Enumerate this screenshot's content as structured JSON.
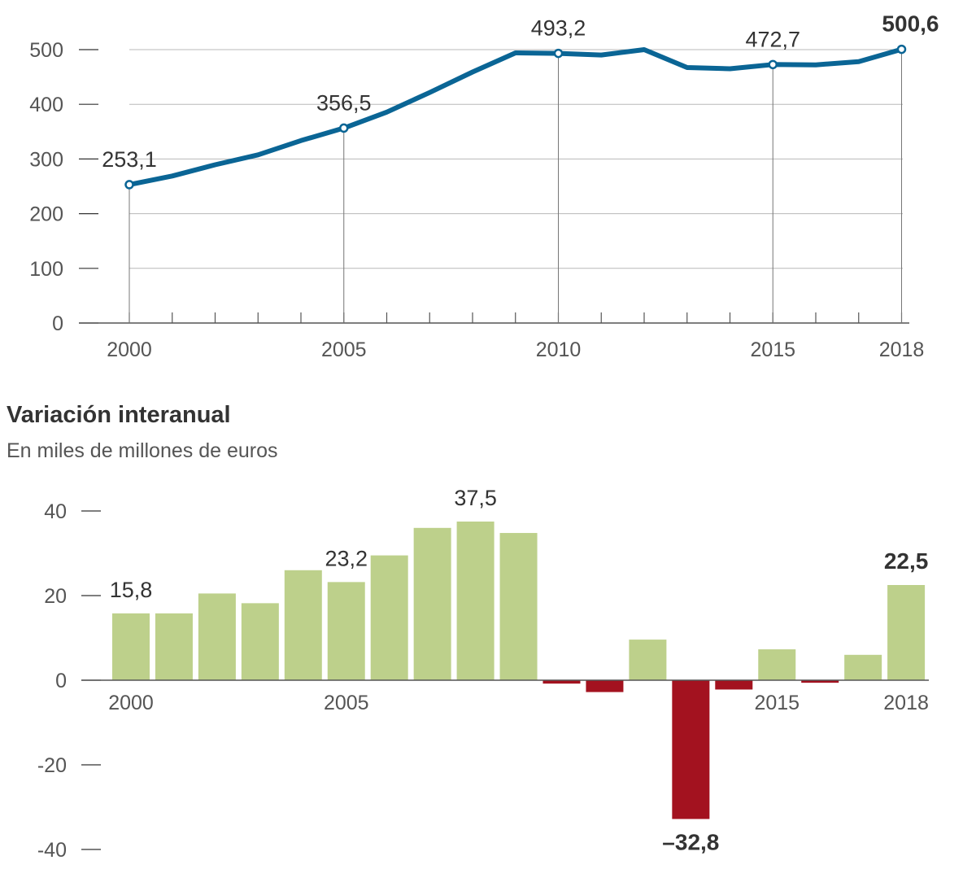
{
  "chart_data": [
    {
      "type": "line",
      "title": "",
      "xlabel": "",
      "ylabel": "",
      "x": [
        2000,
        2001,
        2002,
        2003,
        2004,
        2005,
        2006,
        2007,
        2008,
        2009,
        2010,
        2011,
        2012,
        2013,
        2014,
        2015,
        2016,
        2017,
        2018
      ],
      "values": [
        253.1,
        268.9,
        289.4,
        307.6,
        333.6,
        356.5,
        385.7,
        421.6,
        459.1,
        494.0,
        493.2,
        490.2,
        500.0,
        467.2,
        465.0,
        472.7,
        472.1,
        478.1,
        500.6
      ],
      "ylim": [
        0,
        550
      ],
      "yticks": [
        "0",
        "100",
        "200",
        "300",
        "400",
        "500"
      ],
      "ytick_values": [
        0,
        100,
        200,
        300,
        400,
        500
      ],
      "xticks": [
        "2000",
        "2005",
        "2010",
        "2015",
        "2018"
      ],
      "xtick_values": [
        2000,
        2005,
        2010,
        2015,
        2018
      ],
      "labeled_points": [
        {
          "x": 2000,
          "label": "253,1",
          "bold": false
        },
        {
          "x": 2005,
          "label": "356,5",
          "bold": false
        },
        {
          "x": 2010,
          "label": "493,2",
          "bold": false
        },
        {
          "x": 2015,
          "label": "472,7",
          "bold": false
        },
        {
          "x": 2018,
          "label": "500,6",
          "bold": true
        }
      ],
      "line_color": "#0a6595",
      "grid": true
    },
    {
      "type": "bar",
      "title": "Variación interanual",
      "subtitle": "En miles de millones de euros",
      "xlabel": "",
      "ylabel": "",
      "x": [
        2000,
        2001,
        2002,
        2003,
        2004,
        2005,
        2006,
        2007,
        2008,
        2009,
        2010,
        2011,
        2012,
        2013,
        2014,
        2015,
        2016,
        2017,
        2018
      ],
      "values": [
        15.8,
        15.8,
        20.5,
        18.2,
        26.0,
        23.2,
        29.5,
        36.0,
        37.5,
        34.8,
        -0.8,
        -2.8,
        9.6,
        -32.8,
        -2.2,
        7.3,
        -0.6,
        6.0,
        22.5
      ],
      "ylim": [
        -40,
        40
      ],
      "yticks": [
        "40",
        "20",
        "0",
        "-20",
        "-40"
      ],
      "ytick_values": [
        40,
        20,
        0,
        -20,
        -40
      ],
      "xticks": [
        "2000",
        "2005",
        "2015",
        "2018"
      ],
      "xtick_values": [
        2000,
        2005,
        2015,
        2018
      ],
      "labeled_points": [
        {
          "x": 2000,
          "label": "15,8",
          "bold": false
        },
        {
          "x": 2005,
          "label": "23,2",
          "bold": false
        },
        {
          "x": 2008,
          "label": "37,5",
          "bold": false
        },
        {
          "x": 2013,
          "label": "–32,8",
          "bold": true
        },
        {
          "x": 2018,
          "label": "22,5",
          "bold": true
        }
      ],
      "positive_color": "#bdd08b",
      "negative_color": "#a3121f"
    }
  ]
}
